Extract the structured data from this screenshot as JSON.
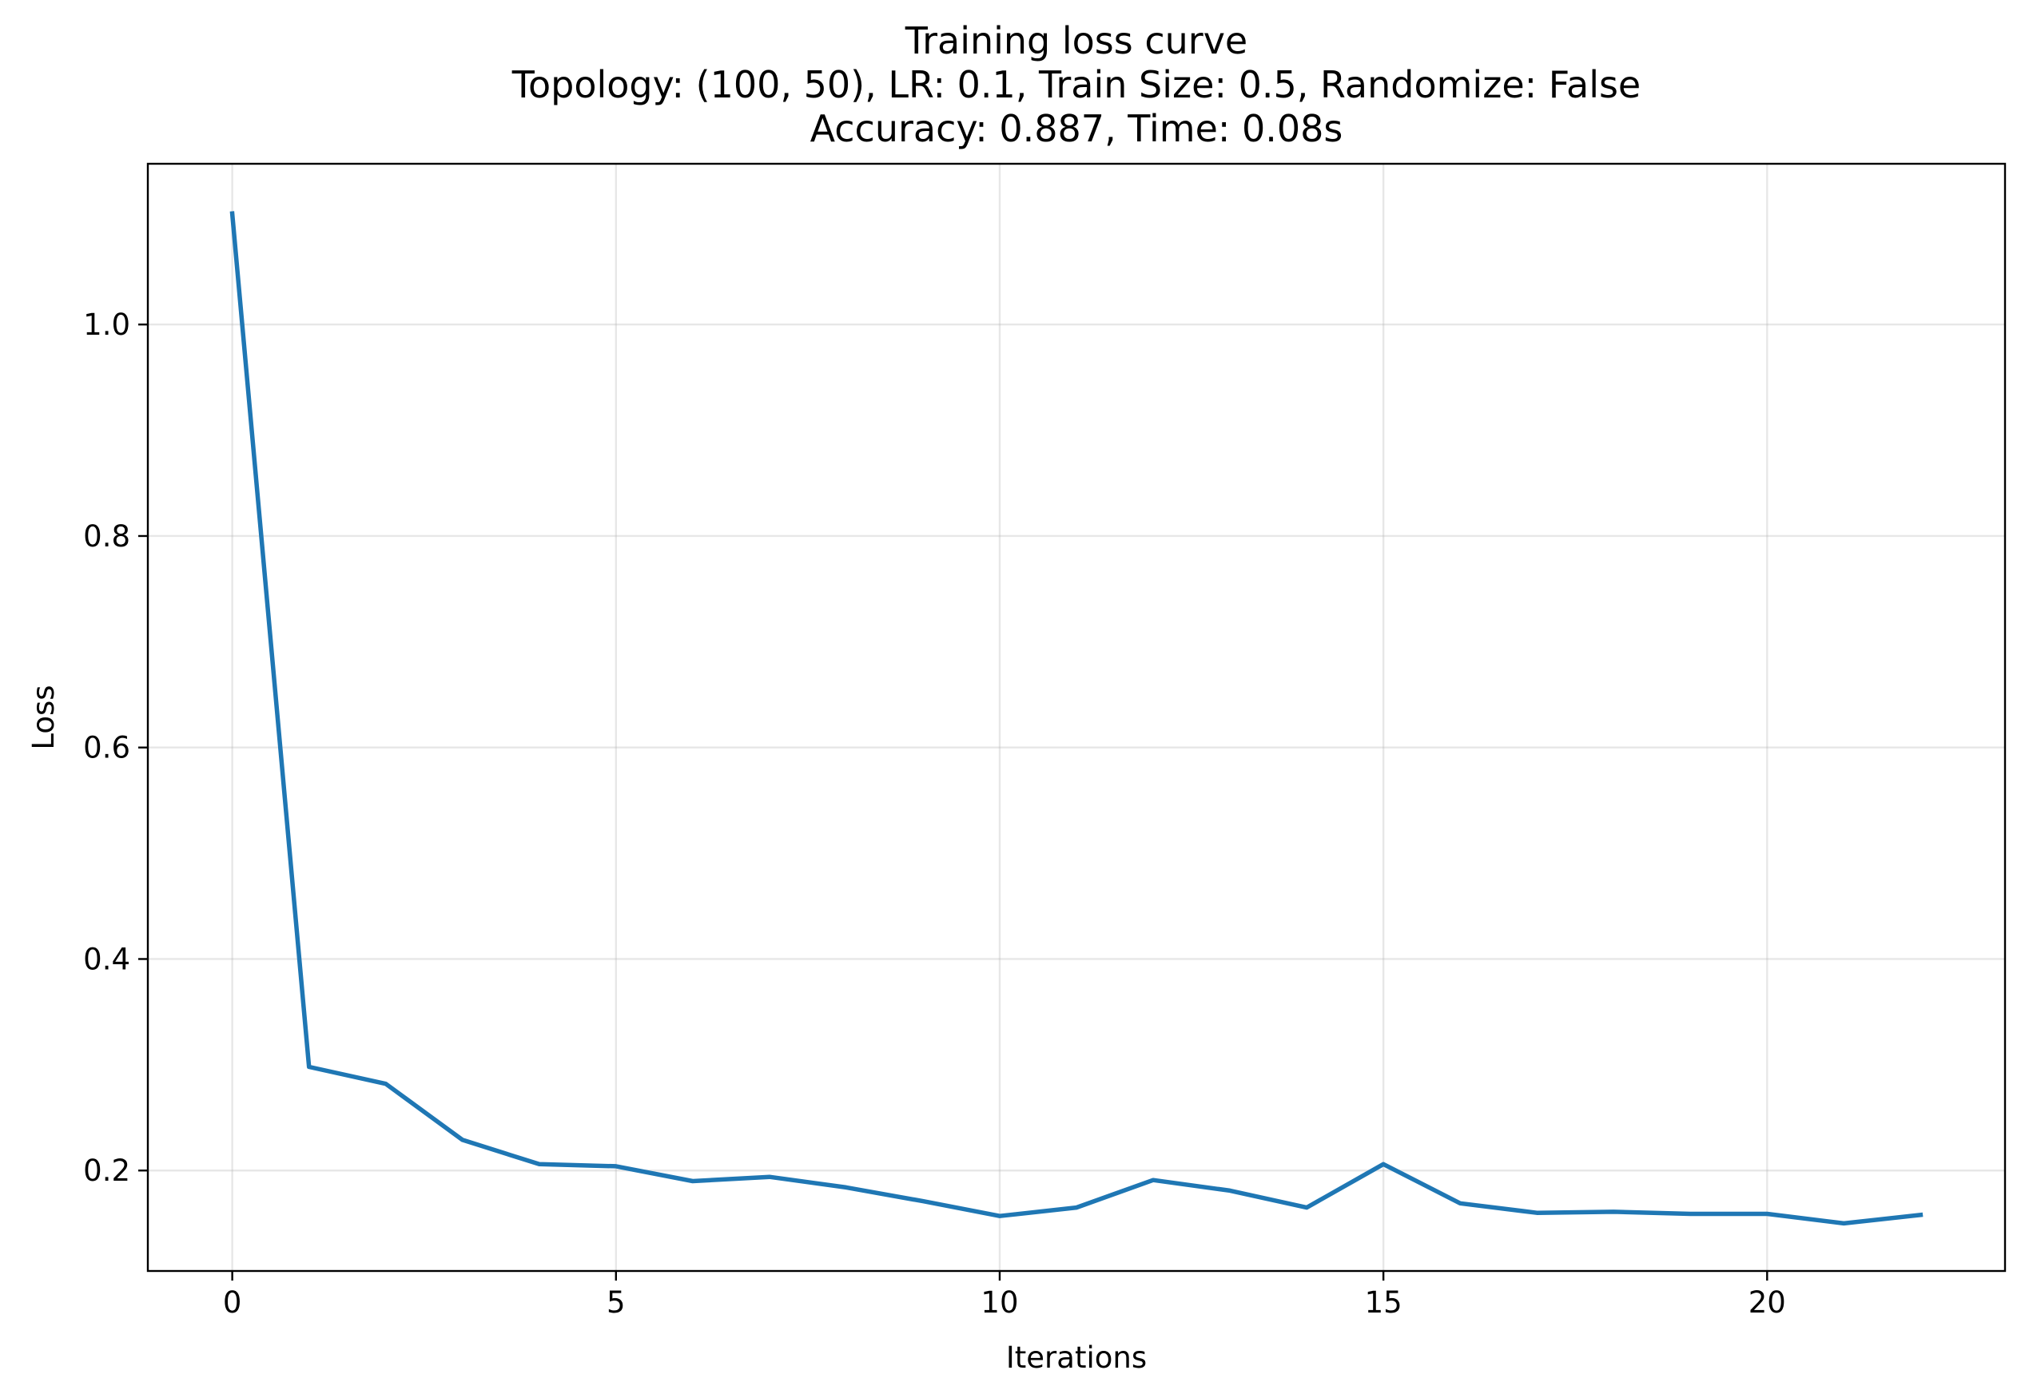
{
  "chart_data": {
    "type": "line",
    "title": "Training loss curve",
    "subtitle_lines": [
      "Topology: (100, 50), LR: 0.1, Train Size: 0.5, Randomize: False",
      "Accuracy: 0.887, Time: 0.08s"
    ],
    "xlabel": "Iterations",
    "ylabel": "Loss",
    "xlim": [
      -1.1,
      23.1
    ],
    "ylim": [
      0.105,
      1.152
    ],
    "xticks": [
      0,
      5,
      10,
      15,
      20
    ],
    "xtick_labels": [
      "0",
      "5",
      "10",
      "15",
      "20"
    ],
    "yticks": [
      0.2,
      0.4,
      0.6,
      0.8,
      1.0
    ],
    "ytick_labels": [
      "0.2",
      "0.4",
      "0.6",
      "0.8",
      "1.0"
    ],
    "grid": true,
    "series": [
      {
        "color": "#1f77b4",
        "x": [
          0,
          1,
          2,
          3,
          4,
          5,
          6,
          7,
          8,
          9,
          10,
          11,
          12,
          13,
          14,
          15,
          16,
          17,
          18,
          19,
          20,
          21,
          22
        ],
        "y": [
          1.105,
          0.298,
          0.282,
          0.229,
          0.206,
          0.204,
          0.19,
          0.194,
          0.184,
          0.171,
          0.157,
          0.165,
          0.191,
          0.181,
          0.165,
          0.206,
          0.169,
          0.16,
          0.161,
          0.159,
          0.159,
          0.15,
          0.158
        ]
      }
    ]
  }
}
